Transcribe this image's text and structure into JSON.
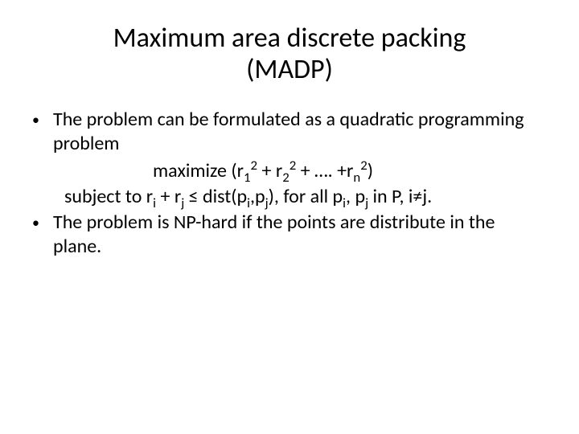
{
  "title_line1": "Maximum area discrete packing",
  "title_line2": "(MADP)",
  "bullet1": "The problem can be formulated as a quadratic programming problem",
  "maximize_kw": "maximize (r",
  "eq_plus": " + r",
  "eq_dots": " + …. +r",
  "eq_close": ")",
  "subject_kw": "subject to  r",
  "plus_r": " + r",
  "leq_dist": " ≤ dist(p",
  "comma_p": ",p",
  "forall": "), for all p",
  "comma_p2": ", p",
  "in_p": " in P, i≠j.",
  "bullet2": "The problem is NP-hard if the points are distribute in the plane.",
  "sub_1": "1",
  "sub_2": "2",
  "sub_n": "n",
  "sub_i": "i",
  "sub_j": "j",
  "sup_2": "2",
  "bullet_char": "•"
}
